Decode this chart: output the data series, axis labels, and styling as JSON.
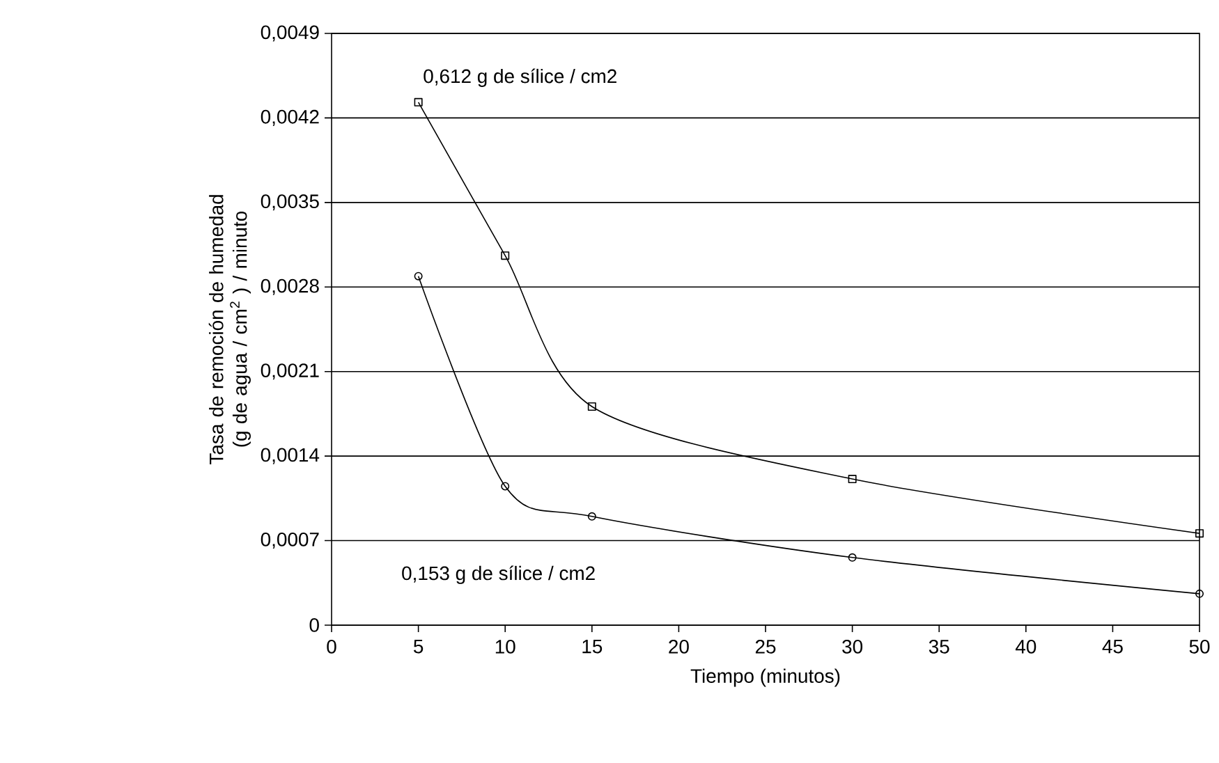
{
  "chart_data": {
    "type": "line",
    "xlabel": "Tiempo (minutos)",
    "ylabel": "Tasa de remoción de humedad (g  de agua / cm$^{2}$ ) / minuto",
    "xlim": [
      0,
      50
    ],
    "xticks": [
      0,
      5,
      10,
      15,
      20,
      25,
      30,
      35,
      40,
      45,
      50
    ],
    "ylim": [
      0,
      0.0049
    ],
    "yticks": [
      {
        "value": 0,
        "label": "0"
      },
      {
        "value": 0.0007,
        "label": "0,0007"
      },
      {
        "value": 0.0014,
        "label": "0,0014"
      },
      {
        "value": 0.0021,
        "label": "0,0021"
      },
      {
        "value": 0.0028,
        "label": "0,0028"
      },
      {
        "value": 0.0035,
        "label": "0,0035"
      },
      {
        "value": 0.0042,
        "label": "0,0042"
      },
      {
        "value": 0.0049,
        "label": "0,0049"
      }
    ],
    "grid": "y",
    "series": [
      {
        "color": "#000000",
        "marker": "square",
        "x": [
          5,
          10,
          15,
          30,
          50
        ],
        "values": [
          0.00433,
          0.00306,
          0.00181,
          0.00121,
          0.00076
        ]
      },
      {
        "color": "#000000",
        "marker": "circle",
        "x": [
          5,
          10,
          15,
          30,
          50
        ],
        "values": [
          0.00289,
          0.00115,
          0.0009,
          0.00056,
          0.00026
        ]
      }
    ],
    "annotations": [
      "0,612 g  de sílice / cm2",
      "0,153 g  de sílice / cm2"
    ]
  }
}
